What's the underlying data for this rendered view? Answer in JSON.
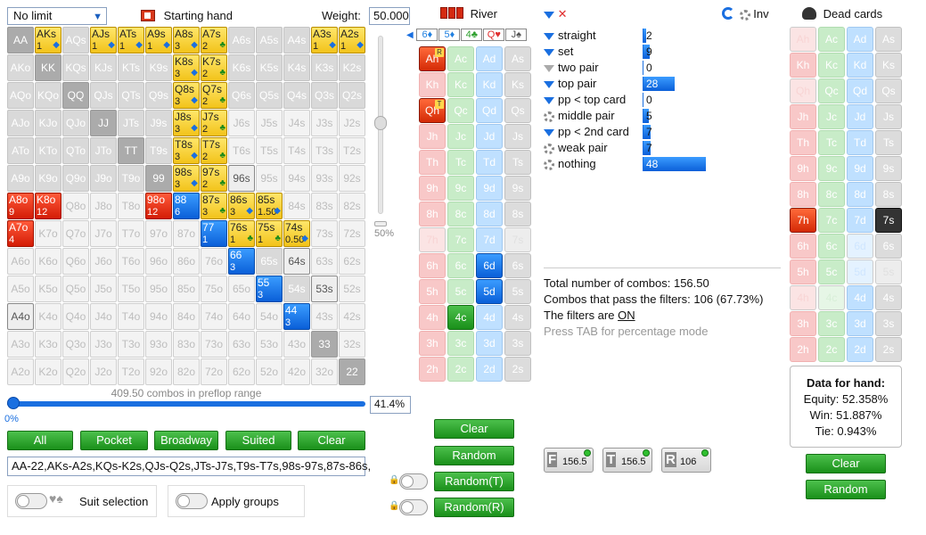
{
  "limit_select": {
    "value": "No limit"
  },
  "starting_hand_label": "Starting hand",
  "weight": {
    "label": "Weight:",
    "value": "50.000"
  },
  "grid": [
    [
      "AA",
      "AKs",
      "AQs",
      "AJs",
      "ATs",
      "A9s",
      "A8s",
      "A7s",
      "A6s",
      "A5s",
      "A4s",
      "A3s",
      "A2s"
    ],
    [
      "AKo",
      "KK",
      "KQs",
      "KJs",
      "KTs",
      "K9s",
      "K8s",
      "K7s",
      "K6s",
      "K5s",
      "K4s",
      "K3s",
      "K2s"
    ],
    [
      "AQo",
      "KQo",
      "QQ",
      "QJs",
      "QTs",
      "Q9s",
      "Q8s",
      "Q7s",
      "Q6s",
      "Q5s",
      "Q4s",
      "Q3s",
      "Q2s"
    ],
    [
      "AJo",
      "KJo",
      "QJo",
      "JJ",
      "JTs",
      "J9s",
      "J8s",
      "J7s",
      "J6s",
      "J5s",
      "J4s",
      "J3s",
      "J2s"
    ],
    [
      "ATo",
      "KTo",
      "QTo",
      "JTo",
      "TT",
      "T9s",
      "T8s",
      "T7s",
      "T6s",
      "T5s",
      "T4s",
      "T3s",
      "T2s"
    ],
    [
      "A9o",
      "K9o",
      "Q9o",
      "J9o",
      "T9o",
      "99",
      "98s",
      "97s",
      "96s",
      "95s",
      "94s",
      "93s",
      "92s"
    ],
    [
      "A8o",
      "K8o",
      "Q8o",
      "J8o",
      "T8o",
      "98o",
      "88",
      "87s",
      "86s",
      "85s",
      "84s",
      "83s",
      "82s"
    ],
    [
      "A7o",
      "K7o",
      "Q7o",
      "J7o",
      "T7o",
      "97o",
      "87o",
      "77",
      "76s",
      "75s",
      "74s",
      "73s",
      "72s"
    ],
    [
      "A6o",
      "K6o",
      "Q6o",
      "J6o",
      "T6o",
      "96o",
      "86o",
      "76o",
      "66",
      "65s",
      "64s",
      "63s",
      "62s"
    ],
    [
      "A5o",
      "K5o",
      "Q5o",
      "J5o",
      "T5o",
      "95o",
      "85o",
      "75o",
      "65o",
      "55",
      "54s",
      "53s",
      "52s"
    ],
    [
      "A4o",
      "K4o",
      "Q4o",
      "J4o",
      "T4o",
      "94o",
      "84o",
      "74o",
      "64o",
      "54o",
      "44",
      "43s",
      "42s"
    ],
    [
      "A3o",
      "K3o",
      "Q3o",
      "J3o",
      "T3o",
      "93o",
      "83o",
      "73o",
      "63o",
      "53o",
      "43o",
      "33",
      "32s"
    ],
    [
      "A2o",
      "K2o",
      "Q2o",
      "J2o",
      "T2o",
      "92o",
      "82o",
      "72o",
      "62o",
      "52o",
      "42o",
      "32o",
      "22"
    ]
  ],
  "grid_counts": {
    "AKs": "1",
    "AJs": "1",
    "ATs": "1",
    "A9s": "1",
    "A8s": "3",
    "A7s": "2",
    "A3s": "1",
    "A2s": "1",
    "K8s": "3",
    "K7s": "2",
    "Q8s": "3",
    "Q7s": "2",
    "J8s": "3",
    "J7s": "2",
    "T8s": "3",
    "T7s": "2",
    "98s": "3",
    "97s": "2",
    "A8o": "9",
    "K8o": "12",
    "98o": "12",
    "88": "6",
    "87s": "3",
    "86s": "3",
    "85s": "1.50",
    "A7o": "4",
    "77": "1",
    "76s": "1",
    "75s": "1",
    "74s": "0.50",
    "66": "3",
    "55": "3",
    "44": "3"
  },
  "slider_vert_value": "50%",
  "combos_in_range": "409.50 combos in preflop range",
  "slider_h_value": "0%",
  "range_pct": "41.4%",
  "range_buttons": [
    "All",
    "Pocket",
    "Broadway",
    "Suited",
    "Clear"
  ],
  "range_text": "AA-22,AKs-A2s,KQs-K2s,QJs-Q2s,JTs-J7s,T9s-T7s,98s-97s,87s-86s,",
  "suit_selection_label": "Suit selection",
  "apply_groups_label": "Apply groups",
  "board": {
    "title": "River",
    "cards": [
      "6♦",
      "5♦",
      "4♣",
      "Q♥",
      "J♠"
    ],
    "colors": {
      "heart": "#f06060",
      "club": "#30a030",
      "diamond": "#2080e0",
      "spade": "#777777"
    }
  },
  "board_buttons": [
    "Clear",
    "Random",
    "Random(T)",
    "Random(R)"
  ],
  "filters": [
    {
      "label": "straight",
      "value": "2",
      "pct": 0.04
    },
    {
      "label": "set",
      "value": "9",
      "pct": 0.1
    },
    {
      "label": "two pair",
      "value": "0",
      "pct": 0
    },
    {
      "label": "top pair",
      "value": "28",
      "pct": 0.5
    },
    {
      "label": "pp < top card",
      "value": "0",
      "pct": 0
    },
    {
      "label": "middle pair",
      "value": "5",
      "pct": 0.08
    },
    {
      "label": "pp < 2nd card",
      "value": "7",
      "pct": 0.12
    },
    {
      "label": "weak pair",
      "value": "7",
      "pct": 0.12
    },
    {
      "label": "nothing",
      "value": "48",
      "pct": 1.0
    }
  ],
  "inv_label": "Inv",
  "stats": {
    "total": "Total number of combos: 156.50",
    "pass": "Combos that pass the filters: 106 (67.73%)",
    "filters_prefix": "The filters are ",
    "filters_state": "ON",
    "hint": "Press TAB for percentage mode"
  },
  "filter_buttons": [
    {
      "letter": "F",
      "value": "156.5"
    },
    {
      "letter": "T",
      "value": "156.5"
    },
    {
      "letter": "R",
      "value": "106"
    }
  ],
  "dead_cards_title": "Dead cards",
  "hand_data": {
    "title": "Data for hand:",
    "equity": "Equity: 52.358%",
    "win": "Win: 51.887%",
    "tie": "Tie: 0.943%"
  },
  "dead_buttons": [
    "Clear",
    "Random"
  ]
}
